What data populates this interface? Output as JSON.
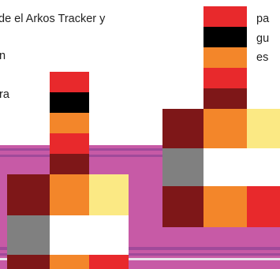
{
  "text": {
    "line1": "de el Arkos Tracker y",
    "line2": "n",
    "line3": "ra",
    "right1": "pa",
    "right2": "gu",
    "right3": "es"
  },
  "colors": {
    "red": "#e8292c",
    "black": "#000000",
    "orange": "#f3862a",
    "dark_red": "#7e1718",
    "yellow": "#fbe984",
    "gray": "#808080",
    "white": "#ffffff",
    "pink": "#c75aa6",
    "purple_stripe": "#a04a9a"
  },
  "graphic": {
    "name": "pixel-art-bottle-sprites",
    "description_shown": ""
  }
}
